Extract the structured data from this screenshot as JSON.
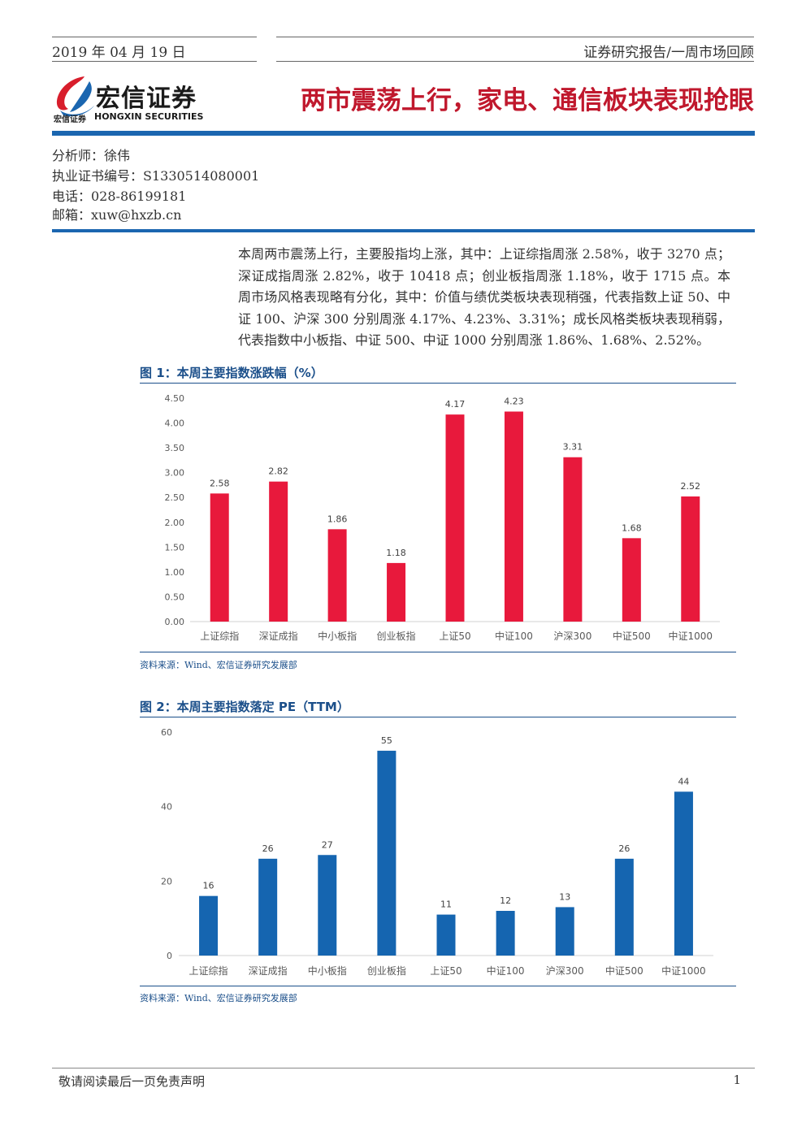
{
  "header": {
    "date": "2019 年 04 月 19 日",
    "report_type": "证券研究报告/一周市场回顾",
    "logo_name": "宏信证券",
    "logo_sub_cn": "宏信证券",
    "logo_sub_en": "HONGXIN SECURITIES",
    "headline": "两市震荡上行，家电、通信板块表现抢眼"
  },
  "analyst": {
    "name_line": "分析师：徐伟",
    "cert_line": "执业证书编号：S1330514080001",
    "phone_line": "电话：028-86199181",
    "email_line": "邮箱：xuw@hxzb.cn"
  },
  "summary": "本周两市震荡上行，主要股指均上涨，其中：上证综指周涨 2.58%，收于 3270 点；深证成指周涨 2.82%，收于 10418 点；创业板指周涨 1.18%，收于 1715 点。本周市场风格表现略有分化，其中：价值与绩优类板块表现稍强，代表指数上证 50、中证 100、沪深 300 分别周涨 4.17%、4.23%、3.31%；成长风格类板块表现稍弱，代表指数中小板指、中证 500、中证 1000 分别周涨 1.86%、1.68%、2.52%。",
  "figures": [
    {
      "title": "图 1：本周主要指数涨跌幅（%）",
      "source": "资料来源：Wind、宏信证券研究发展部"
    },
    {
      "title": "图 2：本周主要指数落定 PE（TTM）",
      "source": "资料来源：Wind、宏信证券研究发展部"
    }
  ],
  "colors": {
    "bar_red": "#e8193c",
    "bar_blue": "#1565b0",
    "accent_blue": "#1b66b0",
    "headline_red": "#c0182d"
  },
  "chart_data": [
    {
      "type": "bar",
      "categories": [
        "上证综指",
        "深证成指",
        "中小板指",
        "创业板指",
        "上证50",
        "中证100",
        "沪深300",
        "中证500",
        "中证1000"
      ],
      "values": [
        2.58,
        2.82,
        1.86,
        1.18,
        4.17,
        4.23,
        3.31,
        1.68,
        2.52
      ],
      "value_labels": [
        "2.58",
        "2.82",
        "1.86",
        "1.18",
        "4.17",
        "4.23",
        "3.31",
        "1.68",
        "2.52"
      ],
      "yticks": [
        "0.00",
        "0.50",
        "1.00",
        "1.50",
        "2.00",
        "2.50",
        "3.00",
        "3.50",
        "4.00",
        "4.50"
      ],
      "ylim": [
        0,
        4.5
      ],
      "title": "图 1：本周主要指数涨跌幅（%）",
      "grid": false,
      "color": "#e8193c"
    },
    {
      "type": "bar",
      "categories": [
        "上证综指",
        "深证成指",
        "中小板指",
        "创业板指",
        "上证50",
        "中证100",
        "沪深300",
        "中证500",
        "中证1000"
      ],
      "values": [
        16,
        26,
        27,
        55,
        11,
        12,
        13,
        26,
        44
      ],
      "value_labels": [
        "16",
        "26",
        "27",
        "55",
        "11",
        "12",
        "13",
        "26",
        "44"
      ],
      "yticks": [
        "0",
        "20",
        "40",
        "60"
      ],
      "ylim": [
        0,
        60
      ],
      "title": "图 2：本周主要指数落定 PE（TTM）",
      "grid": false,
      "color": "#1565b0"
    }
  ],
  "footer": {
    "disclaimer": "敬请阅读最后一页免责声明",
    "page": "1"
  }
}
